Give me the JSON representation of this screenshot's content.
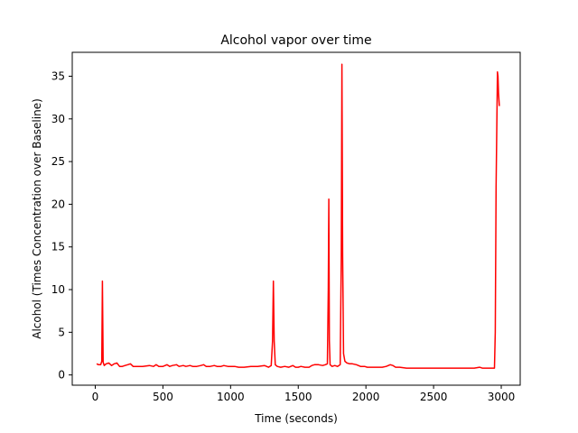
{
  "chart_data": {
    "type": "line",
    "title": "Alcohol vapor over time",
    "xlabel": "Time (seconds)",
    "ylabel": "Alcohol (Times Concentration over Baseline)",
    "xlim": [
      -170,
      3140
    ],
    "ylim": [
      -1.2,
      37.8
    ],
    "xticks": [
      0,
      500,
      1000,
      1500,
      2000,
      2500,
      3000
    ],
    "yticks": [
      0,
      5,
      10,
      15,
      20,
      25,
      30,
      35
    ],
    "grid": false,
    "legend": "none",
    "series": [
      {
        "color": "#ff0000",
        "x": [
          10,
          25,
          40,
          48,
          53,
          58,
          66,
          80,
          100,
          120,
          140,
          160,
          180,
          200,
          220,
          240,
          260,
          280,
          300,
          350,
          400,
          430,
          450,
          470,
          500,
          530,
          550,
          570,
          600,
          620,
          650,
          670,
          700,
          720,
          750,
          780,
          800,
          820,
          850,
          880,
          900,
          930,
          950,
          980,
          1000,
          1030,
          1060,
          1100,
          1150,
          1200,
          1250,
          1280,
          1300,
          1310,
          1316,
          1322,
          1330,
          1345,
          1370,
          1400,
          1430,
          1460,
          1480,
          1500,
          1520,
          1550,
          1580,
          1600,
          1620,
          1650,
          1680,
          1700,
          1715,
          1722,
          1726,
          1730,
          1735,
          1750,
          1770,
          1790,
          1810,
          1818,
          1823,
          1828,
          1835,
          1845,
          1860,
          1880,
          1900,
          1930,
          1960,
          1990,
          2010,
          2040,
          2080,
          2120,
          2150,
          2180,
          2200,
          2220,
          2250,
          2300,
          2350,
          2400,
          2450,
          2500,
          2550,
          2600,
          2650,
          2700,
          2750,
          2800,
          2840,
          2860,
          2880,
          2900,
          2920,
          2940,
          2950,
          2956,
          2962,
          2968,
          2972,
          2976,
          2980,
          2986
        ],
        "values": [
          1.3,
          1.2,
          1.2,
          1.6,
          11.0,
          1.5,
          1.1,
          1.3,
          1.4,
          1.1,
          1.3,
          1.4,
          1.0,
          1.0,
          1.1,
          1.2,
          1.3,
          1.0,
          1.0,
          1.0,
          1.1,
          1.0,
          1.2,
          1.0,
          1.0,
          1.2,
          1.0,
          1.1,
          1.2,
          1.0,
          1.1,
          1.0,
          1.1,
          1.0,
          1.0,
          1.1,
          1.2,
          1.0,
          1.0,
          1.1,
          1.0,
          1.0,
          1.1,
          1.0,
          1.0,
          1.0,
          0.9,
          0.9,
          1.0,
          1.0,
          1.1,
          0.9,
          1.1,
          4.0,
          11.0,
          4.0,
          1.2,
          1.0,
          0.9,
          1.0,
          0.9,
          1.1,
          0.9,
          0.9,
          1.0,
          0.9,
          0.9,
          1.1,
          1.2,
          1.2,
          1.1,
          1.2,
          1.3,
          10.0,
          20.6,
          4.0,
          1.2,
          1.0,
          1.1,
          1.0,
          1.2,
          14.0,
          36.4,
          14.0,
          2.5,
          1.6,
          1.4,
          1.3,
          1.3,
          1.2,
          1.0,
          1.0,
          0.9,
          0.9,
          0.9,
          0.9,
          1.0,
          1.2,
          1.1,
          0.9,
          0.9,
          0.8,
          0.8,
          0.8,
          0.8,
          0.8,
          0.8,
          0.8,
          0.8,
          0.8,
          0.8,
          0.8,
          0.9,
          0.8,
          0.8,
          0.8,
          0.8,
          0.8,
          0.8,
          5.0,
          22.0,
          30.0,
          35.5,
          35.0,
          33.0,
          31.5
        ]
      }
    ]
  }
}
